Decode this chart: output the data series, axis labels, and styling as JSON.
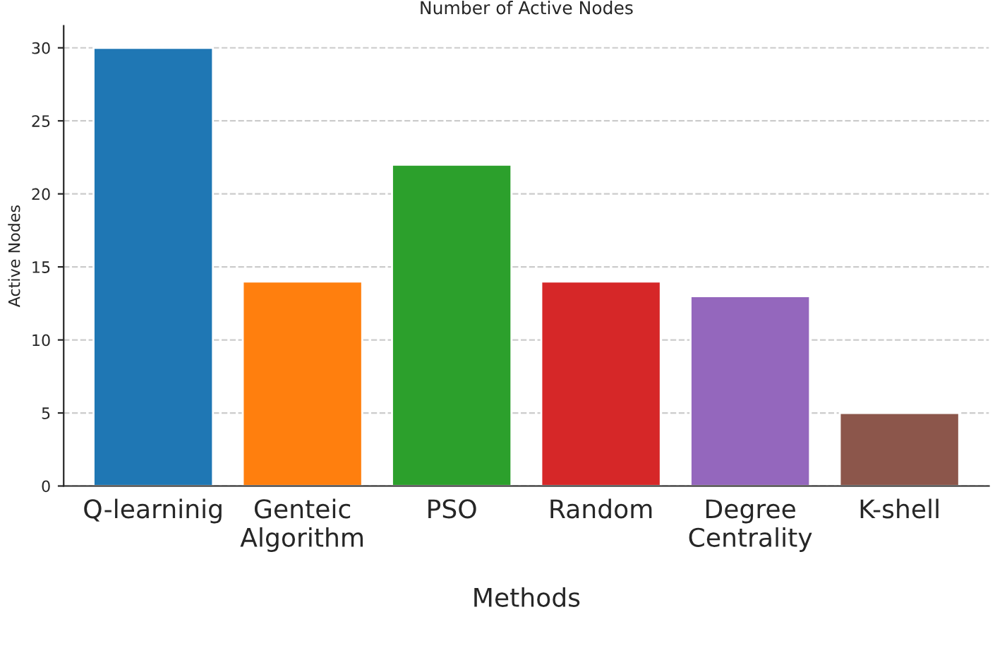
{
  "chart_data": {
    "type": "bar",
    "title": "Number of Active Nodes",
    "xlabel": "Methods",
    "ylabel": "Active Nodes",
    "categories": [
      "Q-learninig",
      "Genteic\nAlgorithm",
      "PSO",
      "Random",
      "Degree\nCentrality",
      "K-shell"
    ],
    "values": [
      30,
      14,
      22,
      14,
      13,
      5
    ],
    "colors": [
      "#1f77b4",
      "#ff7f0e",
      "#2ca02c",
      "#d62728",
      "#9467bd",
      "#8c564b"
    ],
    "ylim": [
      0,
      31.5
    ],
    "yticks": [
      0,
      5,
      10,
      15,
      20,
      25,
      30
    ],
    "grid": "y",
    "line_style": "dashed"
  }
}
